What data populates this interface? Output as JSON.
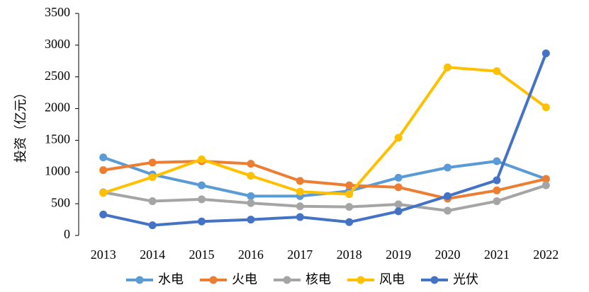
{
  "chart_data": {
    "type": "line",
    "y_label": "投资（亿元）",
    "categories": [
      "2013",
      "2014",
      "2015",
      "2016",
      "2017",
      "2018",
      "2019",
      "2020",
      "2021",
      "2022"
    ],
    "series": [
      {
        "name": "水电",
        "color": "#5b9bd5",
        "values": [
          1230,
          960,
          790,
          620,
          620,
          700,
          910,
          1070,
          1170,
          890
        ]
      },
      {
        "name": "火电",
        "color": "#ed7d31",
        "values": [
          1030,
          1150,
          1170,
          1130,
          860,
          790,
          760,
          580,
          710,
          890
        ]
      },
      {
        "name": "核电",
        "color": "#a5a5a5",
        "values": [
          680,
          540,
          570,
          510,
          460,
          450,
          490,
          390,
          540,
          790
        ]
      },
      {
        "name": "风电",
        "color": "#ffc000",
        "values": [
          670,
          920,
          1200,
          940,
          690,
          650,
          1540,
          2650,
          2590,
          2020
        ]
      },
      {
        "name": "光伏",
        "color": "#4472c4",
        "values": [
          330,
          160,
          220,
          250,
          290,
          210,
          380,
          620,
          870,
          2870
        ]
      }
    ],
    "ylim": [
      0,
      3500
    ],
    "yticks": [
      0,
      500,
      1000,
      1500,
      2000,
      2500,
      3000,
      3500
    ]
  }
}
